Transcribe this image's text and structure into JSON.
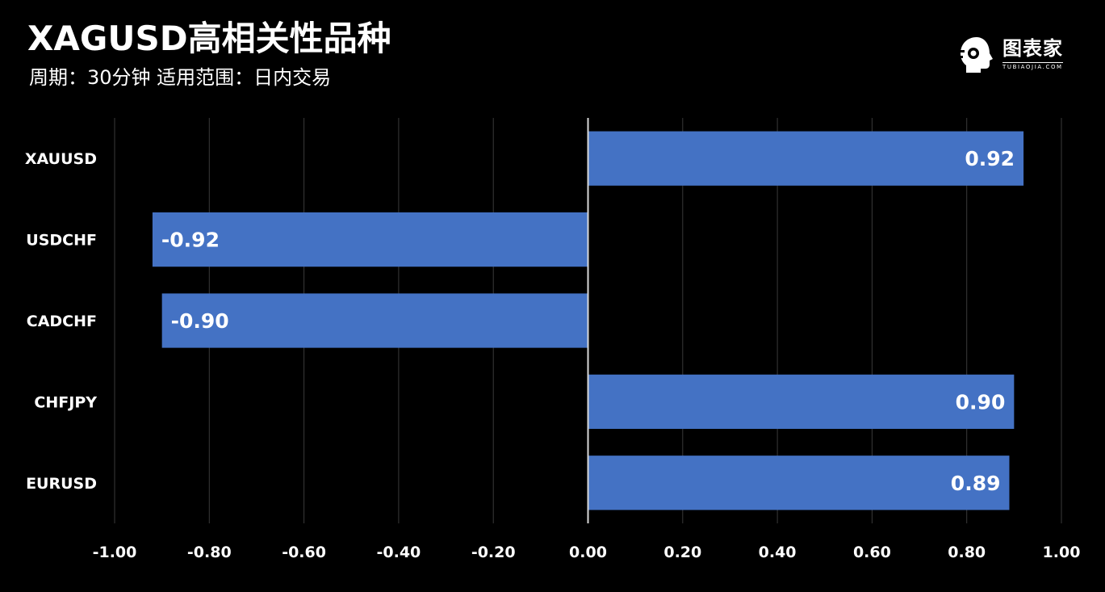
{
  "header": {
    "title": "XAGUSD高相关性品种",
    "subtitle": "周期：30分钟  适用范围：日内交易"
  },
  "logo": {
    "icon": "head-profile-icon",
    "text": "图表家",
    "sub": "TUBIAOJIA.COM"
  },
  "colors": {
    "background": "#000000",
    "bar": "#4472c4",
    "grid": "#3a3a3a",
    "axis": "#d9d9d9",
    "text": "#ffffff"
  },
  "chart_data": {
    "type": "bar",
    "orientation": "horizontal",
    "categories": [
      "XAUUSD",
      "USDCHF",
      "CADCHF",
      "CHFJPY",
      "EURUSD"
    ],
    "values": [
      0.92,
      -0.92,
      -0.9,
      0.9,
      0.89
    ],
    "value_labels": [
      "0.92",
      "-0.92",
      "-0.90",
      "0.90",
      "0.89"
    ],
    "xlim": [
      -1.0,
      1.0
    ],
    "xticks": [
      -1.0,
      -0.8,
      -0.6,
      -0.4,
      -0.2,
      0.0,
      0.2,
      0.4,
      0.6,
      0.8,
      1.0
    ],
    "xtick_labels": [
      "-1.00",
      "-0.80",
      "-0.60",
      "-0.40",
      "-0.20",
      "0.00",
      "0.20",
      "0.40",
      "0.60",
      "0.80",
      "1.00"
    ],
    "grid": true,
    "legend": "none"
  }
}
